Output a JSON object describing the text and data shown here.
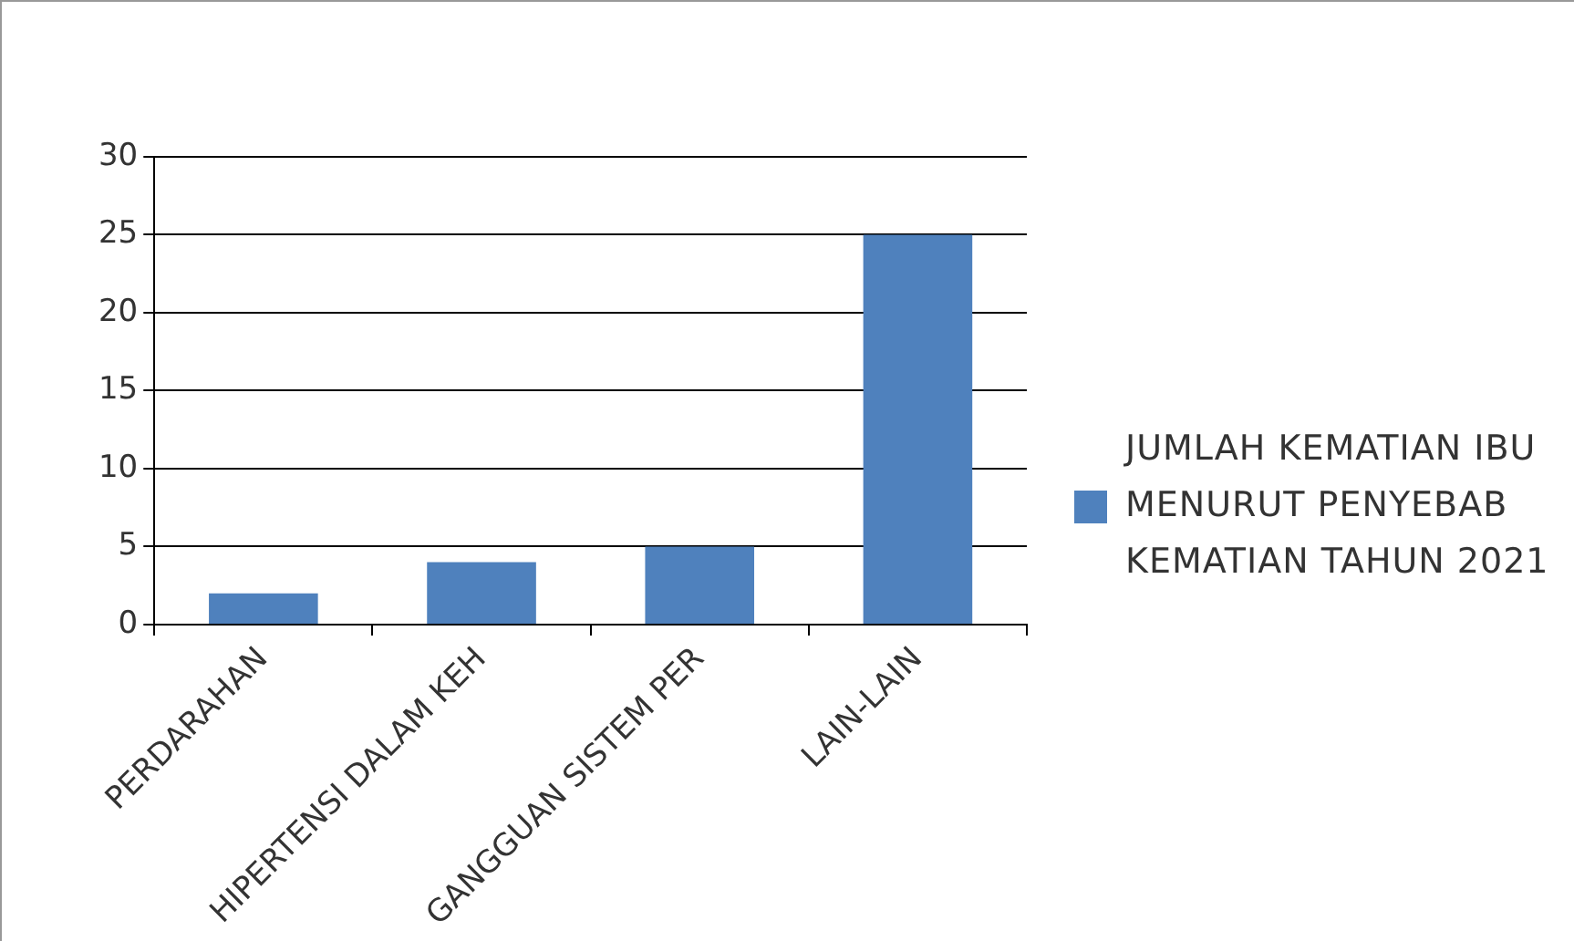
{
  "chart_data": {
    "type": "bar",
    "categories": [
      "PERDARAHAN",
      "HIPERTENSI DALAM KEH",
      "GANGGUAN SISTEM PER",
      "LAIN-LAIN"
    ],
    "series": [
      {
        "name": "JUMLAH KEMATIAN IBU MENURUT PENYEBAB KEMATIAN TAHUN 2021",
        "color": "#4f81bd",
        "values": [
          2,
          4,
          5,
          25
        ]
      }
    ],
    "ylim": [
      0,
      30
    ],
    "yticks": [
      0,
      5,
      10,
      15,
      20,
      25,
      30
    ],
    "grid": "y",
    "legend": "right"
  }
}
